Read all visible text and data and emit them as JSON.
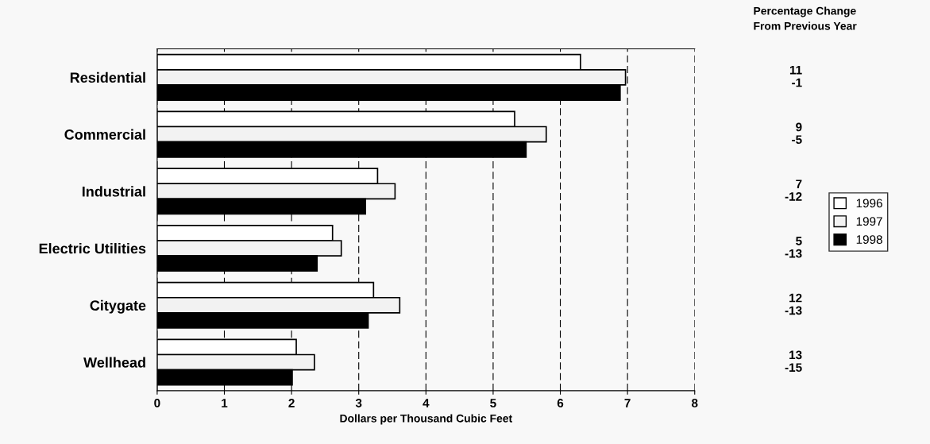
{
  "chart_data": {
    "type": "bar",
    "orientation": "horizontal",
    "xlabel": "Dollars per Thousand Cubic Feet",
    "categories": [
      "Residential",
      "Commercial",
      "Industrial",
      "Electric Utilities",
      "Citygate",
      "Wellhead"
    ],
    "series": [
      {
        "name": "1996",
        "color": "#ffffff",
        "values": [
          6.3,
          5.32,
          3.28,
          2.61,
          3.22,
          2.07
        ]
      },
      {
        "name": "1997",
        "color": "#f2f2f2",
        "values": [
          6.97,
          5.79,
          3.54,
          2.74,
          3.61,
          2.34
        ]
      },
      {
        "name": "1998",
        "color": "#000000",
        "values": [
          6.89,
          5.49,
          3.1,
          2.38,
          3.14,
          2.01
        ]
      }
    ],
    "xlim": [
      0,
      8
    ],
    "xticks": [
      0,
      1,
      2,
      3,
      4,
      5,
      6,
      7,
      8
    ],
    "grid": "x",
    "legend": "right",
    "annotations": [
      "Percentage Change\nFrom Previous Year",
      "11",
      "-1",
      "9",
      "-5",
      "7",
      "-12",
      "5",
      "-13",
      "12",
      "-13",
      "13",
      "-15"
    ]
  }
}
